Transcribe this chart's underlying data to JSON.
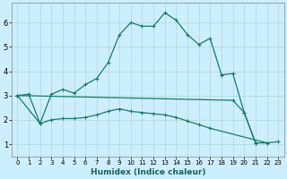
{
  "title": "",
  "xlabel": "Humidex (Indice chaleur)",
  "background_color": "#cceeff",
  "line_color": "#1a7a6e",
  "xlim": [
    -0.5,
    23.5
  ],
  "ylim": [
    0.5,
    6.8
  ],
  "xticks": [
    0,
    1,
    2,
    3,
    4,
    5,
    6,
    7,
    8,
    9,
    10,
    11,
    12,
    13,
    14,
    15,
    16,
    17,
    18,
    19,
    20,
    21,
    22,
    23
  ],
  "yticks": [
    1,
    2,
    3,
    4,
    5,
    6
  ],
  "series1_x": [
    0,
    1,
    2,
    3,
    4,
    5,
    6,
    7,
    8,
    9,
    10,
    11,
    12,
    13,
    14,
    15,
    16,
    17,
    18
  ],
  "series1_y": [
    3.0,
    3.05,
    1.85,
    3.05,
    3.25,
    3.1,
    3.45,
    3.7,
    4.35,
    5.5,
    6.0,
    5.85,
    5.85,
    6.4,
    6.1,
    5.5,
    5.1,
    5.35,
    3.85
  ],
  "series2_x": [
    0,
    2,
    3,
    4,
    5,
    6,
    7,
    8,
    9,
    10,
    11,
    12,
    13,
    14,
    15,
    16,
    17,
    22,
    23
  ],
  "series2_y": [
    3.0,
    1.85,
    2.0,
    2.05,
    2.05,
    2.1,
    2.2,
    2.35,
    2.45,
    2.35,
    2.3,
    2.25,
    2.2,
    2.1,
    1.95,
    1.8,
    1.65,
    1.05,
    1.1
  ],
  "series3_x": [
    0,
    19,
    20,
    21,
    22
  ],
  "series3_y": [
    3.0,
    2.8,
    2.3,
    1.05,
    1.05
  ],
  "series4_x": [
    18,
    19,
    20,
    21
  ],
  "series4_y": [
    3.85,
    3.9,
    2.3,
    1.05
  ]
}
